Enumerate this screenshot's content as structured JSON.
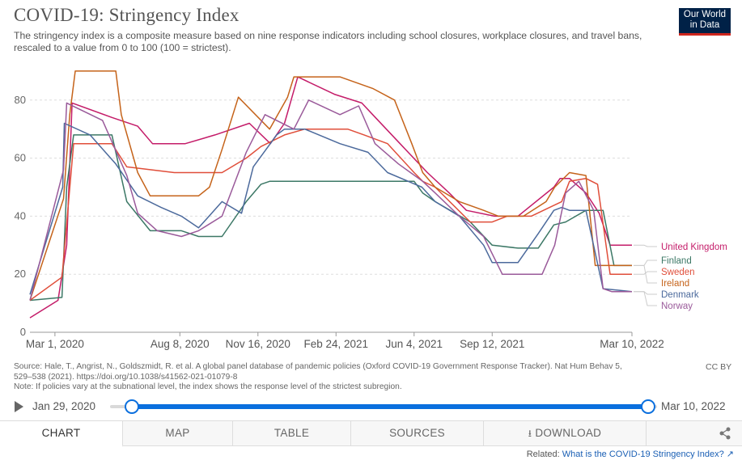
{
  "header": {
    "title": "COVID-19: Stringency Index",
    "subtitle": "The stringency index is a composite measure based on nine response indicators including school closures, workplace closures, and travel bans, rescaled to a value from 0 to 100 (100 = strictest).",
    "logo_line1": "Our World",
    "logo_line2": "in Data"
  },
  "chart_data": {
    "type": "line",
    "x_axis": {
      "type": "date",
      "range": [
        "2020-01-29",
        "2022-03-10"
      ],
      "ticks": [
        "Mar 1, 2020",
        "Aug 8, 2020",
        "Nov 16, 2020",
        "Feb 24, 2021",
        "Jun 4, 2021",
        "Sep 12, 2021",
        "Mar 10, 2022"
      ],
      "tick_dates": [
        "2020-03-01",
        "2020-08-08",
        "2020-11-16",
        "2021-02-24",
        "2021-06-04",
        "2021-09-12",
        "2022-03-10"
      ]
    },
    "y_axis": {
      "range": [
        0,
        100
      ],
      "ticks": [
        0,
        20,
        40,
        60,
        80
      ]
    },
    "grid": "horizontal-dashed",
    "legend": "right, end-of-line labels",
    "series": [
      {
        "name": "United Kingdom",
        "color": "#c41c69",
        "points": [
          [
            "2020-01-29",
            5
          ],
          [
            "2020-03-05",
            11
          ],
          [
            "2020-03-16",
            30
          ],
          [
            "2020-03-23",
            79
          ],
          [
            "2020-05-13",
            74
          ],
          [
            "2020-06-15",
            71
          ],
          [
            "2020-07-04",
            65
          ],
          [
            "2020-08-15",
            65
          ],
          [
            "2020-09-22",
            68
          ],
          [
            "2020-11-05",
            72
          ],
          [
            "2020-12-02",
            65
          ],
          [
            "2020-12-20",
            72
          ],
          [
            "2021-01-06",
            88
          ],
          [
            "2021-02-22",
            82
          ],
          [
            "2021-03-29",
            79
          ],
          [
            "2021-04-12",
            75
          ],
          [
            "2021-05-17",
            65
          ],
          [
            "2021-06-21",
            55
          ],
          [
            "2021-07-19",
            48
          ],
          [
            "2021-08-10",
            42
          ],
          [
            "2021-09-15",
            40
          ],
          [
            "2021-10-15",
            40
          ],
          [
            "2021-11-30",
            50
          ],
          [
            "2021-12-08",
            53
          ],
          [
            "2021-12-20",
            53
          ],
          [
            "2022-01-10",
            48
          ],
          [
            "2022-01-27",
            41
          ],
          [
            "2022-02-10",
            30
          ],
          [
            "2022-02-24",
            30
          ],
          [
            "2022-03-10",
            30
          ]
        ]
      },
      {
        "name": "Finland",
        "color": "#3c7866",
        "points": [
          [
            "2020-01-29",
            11
          ],
          [
            "2020-03-10",
            12
          ],
          [
            "2020-03-16",
            50
          ],
          [
            "2020-03-25",
            68
          ],
          [
            "2020-05-13",
            68
          ],
          [
            "2020-06-01",
            45
          ],
          [
            "2020-07-01",
            35
          ],
          [
            "2020-08-10",
            35
          ],
          [
            "2020-09-01",
            33
          ],
          [
            "2020-10-01",
            33
          ],
          [
            "2020-11-01",
            45
          ],
          [
            "2020-11-20",
            51
          ],
          [
            "2020-12-01",
            52
          ],
          [
            "2021-02-24",
            52
          ],
          [
            "2021-03-08",
            52
          ],
          [
            "2021-06-04",
            52
          ],
          [
            "2021-06-15",
            48
          ],
          [
            "2021-07-01",
            45
          ],
          [
            "2021-08-15",
            38
          ],
          [
            "2021-09-12",
            30
          ],
          [
            "2021-10-15",
            29
          ],
          [
            "2021-11-10",
            29
          ],
          [
            "2021-11-30",
            37
          ],
          [
            "2021-12-15",
            38
          ],
          [
            "2022-01-10",
            42
          ],
          [
            "2022-02-01",
            42
          ],
          [
            "2022-02-15",
            23
          ],
          [
            "2022-03-10",
            23
          ]
        ]
      },
      {
        "name": "Sweden",
        "color": "#e04e3a",
        "points": [
          [
            "2020-01-29",
            11
          ],
          [
            "2020-03-10",
            19
          ],
          [
            "2020-03-25",
            65
          ],
          [
            "2020-05-13",
            65
          ],
          [
            "2020-06-01",
            57
          ],
          [
            "2020-08-01",
            55
          ],
          [
            "2020-09-01",
            55
          ],
          [
            "2020-10-01",
            55
          ],
          [
            "2020-11-01",
            60
          ],
          [
            "2020-11-20",
            64
          ],
          [
            "2020-12-20",
            68
          ],
          [
            "2021-01-15",
            70
          ],
          [
            "2021-03-11",
            70
          ],
          [
            "2021-04-01",
            68
          ],
          [
            "2021-05-01",
            65
          ],
          [
            "2021-06-04",
            55
          ],
          [
            "2021-06-15",
            52
          ],
          [
            "2021-07-01",
            50
          ],
          [
            "2021-08-15",
            38
          ],
          [
            "2021-09-12",
            38
          ],
          [
            "2021-10-01",
            40
          ],
          [
            "2021-11-01",
            40
          ],
          [
            "2021-12-10",
            45
          ],
          [
            "2021-12-20",
            52
          ],
          [
            "2022-01-10",
            53
          ],
          [
            "2022-01-25",
            51
          ],
          [
            "2022-02-10",
            20
          ],
          [
            "2022-03-10",
            20
          ]
        ]
      },
      {
        "name": "Ireland",
        "color": "#c5631a",
        "points": [
          [
            "2020-01-29",
            11
          ],
          [
            "2020-03-12",
            46
          ],
          [
            "2020-03-20",
            75
          ],
          [
            "2020-03-27",
            90
          ],
          [
            "2020-05-18",
            90
          ],
          [
            "2020-05-25",
            75
          ],
          [
            "2020-06-15",
            55
          ],
          [
            "2020-07-01",
            47
          ],
          [
            "2020-08-10",
            47
          ],
          [
            "2020-09-01",
            47
          ],
          [
            "2020-09-15",
            50
          ],
          [
            "2020-10-01",
            63
          ],
          [
            "2020-10-22",
            81
          ],
          [
            "2020-12-01",
            70
          ],
          [
            "2020-12-24",
            81
          ],
          [
            "2021-01-01",
            88
          ],
          [
            "2021-03-01",
            88
          ],
          [
            "2021-04-12",
            84
          ],
          [
            "2021-05-10",
            80
          ],
          [
            "2021-06-01",
            65
          ],
          [
            "2021-06-15",
            55
          ],
          [
            "2021-07-01",
            50
          ],
          [
            "2021-08-01",
            45
          ],
          [
            "2021-09-01",
            42
          ],
          [
            "2021-09-20",
            40
          ],
          [
            "2021-10-22",
            40
          ],
          [
            "2021-11-20",
            45
          ],
          [
            "2021-12-01",
            50
          ],
          [
            "2021-12-20",
            55
          ],
          [
            "2022-01-10",
            54
          ],
          [
            "2022-01-22",
            23
          ],
          [
            "2022-03-10",
            23
          ]
        ]
      },
      {
        "name": "Denmark",
        "color": "#4c6a9c",
        "points": [
          [
            "2020-01-29",
            13
          ],
          [
            "2020-03-11",
            50
          ],
          [
            "2020-03-13",
            72
          ],
          [
            "2020-04-15",
            68
          ],
          [
            "2020-05-18",
            58
          ],
          [
            "2020-06-15",
            47
          ],
          [
            "2020-07-15",
            43
          ],
          [
            "2020-08-10",
            40
          ],
          [
            "2020-09-01",
            36
          ],
          [
            "2020-10-01",
            45
          ],
          [
            "2020-10-26",
            41
          ],
          [
            "2020-11-10",
            57
          ],
          [
            "2020-12-10",
            68
          ],
          [
            "2020-12-20",
            70
          ],
          [
            "2021-01-15",
            70
          ],
          [
            "2021-03-01",
            65
          ],
          [
            "2021-04-06",
            62
          ],
          [
            "2021-05-01",
            55
          ],
          [
            "2021-06-14",
            50
          ],
          [
            "2021-07-01",
            45
          ],
          [
            "2021-08-01",
            40
          ],
          [
            "2021-09-01",
            30
          ],
          [
            "2021-09-12",
            24
          ],
          [
            "2021-10-15",
            24
          ],
          [
            "2021-11-10",
            34
          ],
          [
            "2021-11-30",
            42
          ],
          [
            "2021-12-10",
            43
          ],
          [
            "2021-12-20",
            42
          ],
          [
            "2022-01-10",
            42
          ],
          [
            "2022-02-01",
            15
          ],
          [
            "2022-03-10",
            14
          ]
        ]
      },
      {
        "name": "Norway",
        "color": "#9a5a9a",
        "points": [
          [
            "2020-01-29",
            11
          ],
          [
            "2020-03-12",
            56
          ],
          [
            "2020-03-16",
            79
          ],
          [
            "2020-05-01",
            73
          ],
          [
            "2020-06-01",
            54
          ],
          [
            "2020-06-15",
            41
          ],
          [
            "2020-07-10",
            35
          ],
          [
            "2020-08-10",
            33
          ],
          [
            "2020-09-01",
            35
          ],
          [
            "2020-10-01",
            40
          ],
          [
            "2020-11-01",
            62
          ],
          [
            "2020-11-25",
            75
          ],
          [
            "2021-01-01",
            70
          ],
          [
            "2021-01-20",
            80
          ],
          [
            "2021-03-01",
            75
          ],
          [
            "2021-03-25",
            78
          ],
          [
            "2021-04-15",
            65
          ],
          [
            "2021-05-15",
            58
          ],
          [
            "2021-06-15",
            52
          ],
          [
            "2021-07-01",
            48
          ],
          [
            "2021-08-01",
            40
          ],
          [
            "2021-09-01",
            33
          ],
          [
            "2021-09-25",
            20
          ],
          [
            "2021-11-15",
            20
          ],
          [
            "2021-12-01",
            30
          ],
          [
            "2021-12-15",
            48
          ],
          [
            "2022-01-01",
            52
          ],
          [
            "2022-01-20",
            42
          ],
          [
            "2022-02-01",
            15
          ],
          [
            "2022-02-12",
            14
          ],
          [
            "2022-03-10",
            14
          ]
        ]
      }
    ]
  },
  "source": {
    "line1": "Source: Hale, T., Angrist, N., Goldszmidt, R. et al. A global panel database of pandemic policies (Oxford COVID-19 Government Response Tracker). Nat Hum Behav 5,",
    "line2": "529–538 (2021). https://doi.org/10.1038/s41562-021-01079-8",
    "line3": "Note: If policies vary at the subnational level, the index shows the response level of the strictest subregion.",
    "license": "CC BY"
  },
  "timeline": {
    "start": "Jan 29, 2020",
    "end": "Mar 10, 2022"
  },
  "tabs": {
    "chart": "CHART",
    "map": "MAP",
    "table": "TABLE",
    "sources": "SOURCES",
    "download": "DOWNLOAD"
  },
  "related": {
    "prefix": "Related:",
    "link": "What is the COVID-19 Stringency Index?"
  }
}
